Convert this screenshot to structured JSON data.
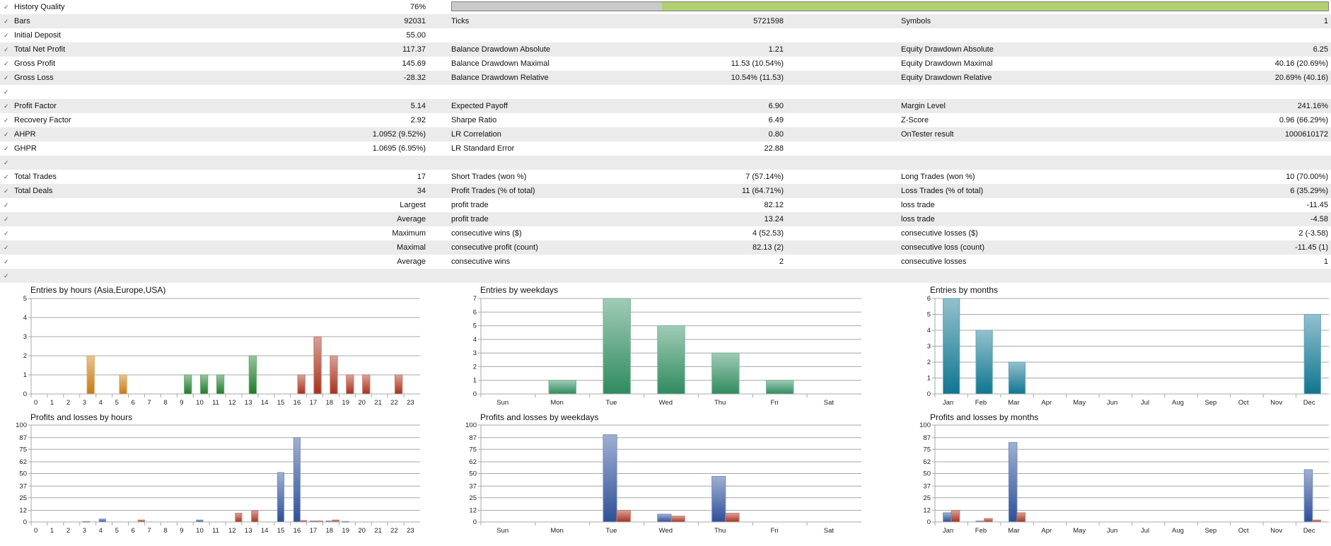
{
  "history_quality": {
    "label": "History Quality",
    "value": "76%",
    "fraction": 0.76,
    "bar_color": "#b1d071"
  },
  "rows": [
    [
      "Bars",
      "92031",
      "Ticks",
      "5721598",
      "Symbols",
      "1"
    ],
    [
      "Initial Deposit",
      "55.00",
      "",
      "",
      "",
      ""
    ],
    [
      "Total Net Profit",
      "117.37",
      "Balance Drawdown Absolute",
      "1.21",
      "Equity Drawdown Absolute",
      "6.25"
    ],
    [
      "Gross Profit",
      "145.69",
      "Balance Drawdown Maximal",
      "11.53 (10.54%)",
      "Equity Drawdown Maximal",
      "40.16 (20.69%)"
    ],
    [
      "Gross Loss",
      "-28.32",
      "Balance Drawdown Relative",
      "10.54% (11.53)",
      "Equity Drawdown Relative",
      "20.69% (40.16)"
    ],
    [
      "",
      "",
      "",
      "",
      "",
      ""
    ],
    [
      "Profit Factor",
      "5.14",
      "Expected Payoff",
      "6.90",
      "Margin Level",
      "241.16%"
    ],
    [
      "Recovery Factor",
      "2.92",
      "Sharpe Ratio",
      "6.49",
      "Z-Score",
      "0.96 (66.29%)"
    ],
    [
      "AHPR",
      "1.0952 (9.52%)",
      "LR Correlation",
      "0.80",
      "OnTester result",
      "1000610172"
    ],
    [
      "GHPR",
      "1.0695 (6.95%)",
      "LR Standard Error",
      "22.88",
      "",
      ""
    ],
    [
      "",
      "",
      "",
      "",
      "",
      ""
    ],
    [
      "Total Trades",
      "17",
      "Short Trades (won %)",
      "7 (57.14%)",
      "Long Trades (won %)",
      "10 (70.00%)"
    ],
    [
      "Total Deals",
      "34",
      "Profit Trades (% of total)",
      "11 (64.71%)",
      "Loss Trades (% of total)",
      "6 (35.29%)"
    ],
    [
      "",
      "Largest",
      "profit trade",
      "82.12",
      "loss trade",
      "-11.45"
    ],
    [
      "",
      "Average",
      "profit trade",
      "13.24",
      "loss trade",
      "-4.58"
    ],
    [
      "",
      "Maximum",
      "consecutive wins ($)",
      "4 (52.53)",
      "consecutive losses ($)",
      "2 (-3.58)"
    ],
    [
      "",
      "Maximal",
      "consecutive profit (count)",
      "82.13 (2)",
      "consecutive loss (count)",
      "-11.45 (1)"
    ],
    [
      "",
      "Average",
      "consecutive wins",
      "2",
      "consecutive losses",
      "1"
    ],
    [
      "",
      "",
      "",
      "",
      "",
      ""
    ]
  ],
  "chart_data": [
    {
      "type": "bar",
      "title": "Entries by hours (Asia,Europe,USA)",
      "categories": [
        "0",
        "1",
        "2",
        "3",
        "4",
        "5",
        "6",
        "7",
        "8",
        "9",
        "10",
        "11",
        "12",
        "13",
        "14",
        "15",
        "16",
        "17",
        "18",
        "19",
        "20",
        "21",
        "22",
        "23"
      ],
      "series": [
        {
          "name": "Entries",
          "values": [
            0,
            0,
            0,
            2,
            0,
            1,
            0,
            0,
            0,
            1,
            1,
            1,
            0,
            2,
            0,
            0,
            1,
            3,
            2,
            1,
            1,
            0,
            1,
            0
          ]
        }
      ],
      "region_colors": {
        "Asia": "#c87a12",
        "Europe": "#1f7a2a",
        "USA": "#a8301c"
      },
      "yticks": [
        0,
        1,
        2,
        3,
        4,
        5
      ],
      "ylim": [
        0,
        5
      ]
    },
    {
      "type": "bar",
      "title": "Entries by weekdays",
      "categories": [
        "Sun",
        "Mon",
        "Tue",
        "Wed",
        "Thu",
        "Fri",
        "Sat"
      ],
      "series": [
        {
          "name": "Entries",
          "values": [
            0,
            1,
            7,
            5,
            3,
            1,
            0
          ],
          "color": "#2e8b5e"
        }
      ],
      "yticks": [
        0,
        1,
        2,
        3,
        4,
        5,
        6,
        7
      ],
      "ylim": [
        0,
        7
      ]
    },
    {
      "type": "bar",
      "title": "Entries by months",
      "categories": [
        "Jan",
        "Feb",
        "Mar",
        "Apr",
        "May",
        "Jun",
        "Jul",
        "Aug",
        "Sep",
        "Oct",
        "Nov",
        "Dec"
      ],
      "series": [
        {
          "name": "Entries",
          "values": [
            6,
            4,
            2,
            0,
            0,
            0,
            0,
            0,
            0,
            0,
            0,
            5
          ],
          "color": "#0f7590"
        }
      ],
      "yticks": [
        0,
        1,
        2,
        3,
        4,
        5,
        6
      ],
      "ylim": [
        0,
        6
      ]
    },
    {
      "type": "bar",
      "title": "Profits and losses by hours",
      "categories": [
        "0",
        "1",
        "2",
        "3",
        "4",
        "5",
        "6",
        "7",
        "8",
        "9",
        "10",
        "11",
        "12",
        "13",
        "14",
        "15",
        "16",
        "17",
        "18",
        "19",
        "20",
        "21",
        "22",
        "23"
      ],
      "series": [
        {
          "name": "Profits",
          "values": [
            0,
            0,
            0,
            0.5,
            3,
            0,
            0,
            0,
            0,
            0,
            2,
            0,
            0,
            0,
            0,
            51,
            87,
            1,
            1,
            0.5,
            0,
            0,
            0,
            0
          ],
          "color": "#2d4f98"
        },
        {
          "name": "Losses",
          "values": [
            0,
            0,
            0,
            0,
            0,
            0,
            2,
            0,
            0,
            0,
            0,
            0,
            9,
            11.5,
            0,
            0,
            1.5,
            1,
            2,
            0,
            0,
            0,
            0,
            0
          ],
          "color": "#a8301c"
        }
      ],
      "yticks": [
        0,
        12,
        25,
        37,
        50,
        62,
        75,
        87,
        100
      ],
      "ylim": [
        0,
        100
      ]
    },
    {
      "type": "bar",
      "title": "Profits and losses by weekdays",
      "categories": [
        "Sun",
        "Mon",
        "Tue",
        "Wed",
        "Thu",
        "Fri",
        "Sat"
      ],
      "series": [
        {
          "name": "Profits",
          "values": [
            0,
            0,
            90,
            8,
            47,
            0,
            0
          ],
          "color": "#2d4f98"
        },
        {
          "name": "Losses",
          "values": [
            0,
            0,
            12,
            6,
            9,
            0,
            0
          ],
          "color": "#a8301c"
        }
      ],
      "yticks": [
        0,
        12,
        25,
        37,
        50,
        62,
        75,
        87,
        100
      ],
      "ylim": [
        0,
        100
      ]
    },
    {
      "type": "bar",
      "title": "Profits and losses by months",
      "categories": [
        "Jan",
        "Feb",
        "Mar",
        "Apr",
        "May",
        "Jun",
        "Jul",
        "Aug",
        "Sep",
        "Oct",
        "Nov",
        "Dec"
      ],
      "series": [
        {
          "name": "Profits",
          "values": [
            9.5,
            1,
            82,
            0,
            0,
            0,
            0,
            0,
            0,
            0,
            0,
            54
          ],
          "color": "#2d4f98"
        },
        {
          "name": "Losses",
          "values": [
            12,
            3.5,
            9.5,
            0,
            0,
            0,
            0,
            0,
            0,
            0,
            0,
            2
          ],
          "color": "#a8301c"
        }
      ],
      "yticks": [
        0,
        12,
        25,
        37,
        50,
        62,
        75,
        87,
        100
      ],
      "ylim": [
        0,
        100
      ]
    }
  ]
}
